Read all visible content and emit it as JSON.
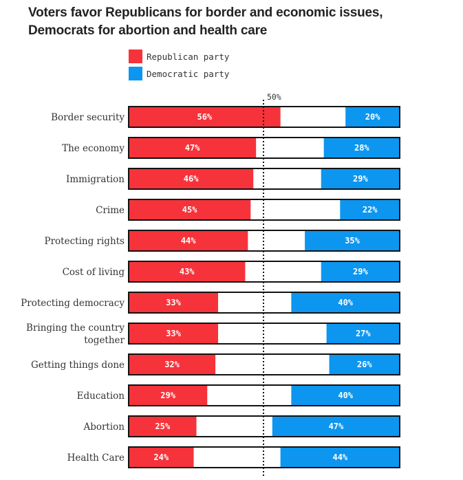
{
  "chart_data": {
    "type": "bar",
    "subtype": "stacked-horizontal",
    "title": [
      "Voters favor Republicans for border and economic issues,",
      "Democrats for abortion and health care"
    ],
    "categories": [
      [
        "Border security"
      ],
      [
        "The economy"
      ],
      [
        "Immigration"
      ],
      [
        "Crime"
      ],
      [
        "Protecting rights"
      ],
      [
        "Cost of living"
      ],
      [
        "Protecting democracy"
      ],
      [
        "Bringing the country",
        "together"
      ],
      [
        "Getting things done"
      ],
      [
        "Education"
      ],
      [
        "Abortion"
      ],
      [
        "Health Care"
      ]
    ],
    "series": [
      {
        "name": "Republican party",
        "color": "#f6333a",
        "values": [
          56,
          47,
          46,
          45,
          44,
          43,
          33,
          33,
          32,
          29,
          25,
          24
        ]
      },
      {
        "name": "Democratic party",
        "color": "#0c96f0",
        "values": [
          20,
          28,
          29,
          22,
          35,
          29,
          40,
          27,
          26,
          40,
          47,
          44
        ]
      }
    ],
    "xlim": [
      0,
      100
    ],
    "reference_line": {
      "value": 50,
      "label": "50%"
    },
    "value_suffix": "%",
    "legend_position": "top-left"
  }
}
